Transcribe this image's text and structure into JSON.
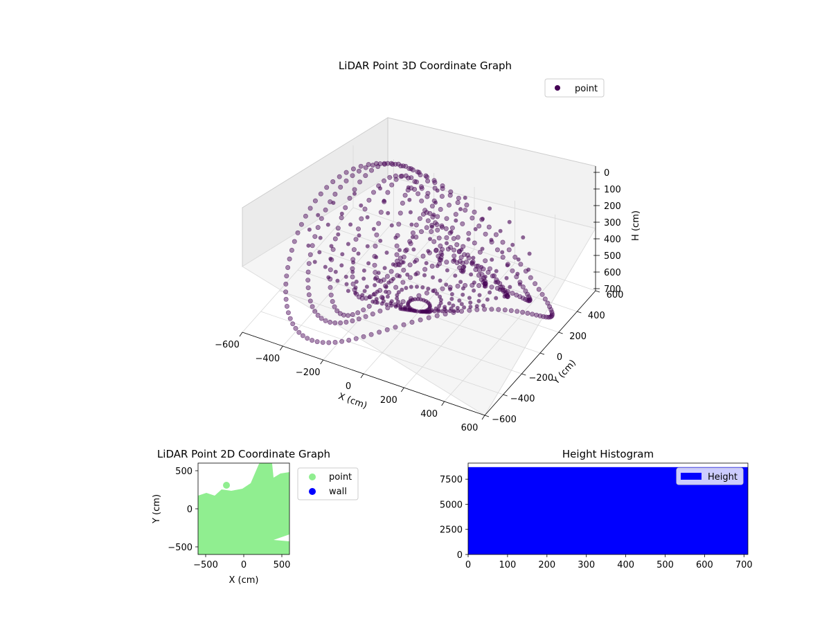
{
  "chart_data": [
    {
      "type": "scatter",
      "projection": "3d",
      "title": "LiDAR Point 3D Coordinate Graph",
      "xlabel": "X (cm)",
      "ylabel": "Y (cm)",
      "zlabel": "H (cm)",
      "x_ticks": [
        "−600",
        "−400",
        "−200",
        "0",
        "200",
        "400",
        "600"
      ],
      "y_ticks": [
        "−600",
        "−400",
        "−200",
        "0",
        "200",
        "400",
        "600"
      ],
      "z_ticks": [
        "0",
        "100",
        "200",
        "300",
        "400",
        "500",
        "600",
        "700"
      ],
      "xlim": [
        -600,
        600
      ],
      "ylim": [
        -600,
        600
      ],
      "zlim": [
        700,
        0
      ],
      "z_inverted": true,
      "grid": true,
      "legend": {
        "placement": "upper-right",
        "entries": [
          {
            "name": "point",
            "color": "#440154"
          }
        ]
      },
      "series": [
        {
          "name": "point",
          "color": "#440154",
          "description": "Concentric dome-like LiDAR rings; samples of the visible point cloud",
          "rings": [
            {
              "radius": 100,
              "height_range": [
                250,
                500
              ]
            },
            {
              "radius": 200,
              "height_range": [
                250,
                550
              ]
            },
            {
              "radius": 300,
              "height_range": [
                300,
                600
              ]
            },
            {
              "radius": 400,
              "height_range": [
                300,
                650
              ]
            },
            {
              "radius": 500,
              "height_range": [
                350,
                650
              ]
            },
            {
              "radius": 600,
              "height_range": [
                400,
                700
              ]
            }
          ]
        }
      ]
    },
    {
      "type": "scatter",
      "title": "LiDAR Point 2D Coordinate Graph",
      "xlabel": "X (cm)",
      "ylabel": "Y (cm)",
      "x_ticks": [
        "−500",
        "0",
        "500"
      ],
      "y_ticks": [
        "−500",
        "0",
        "500"
      ],
      "xlim": [
        -600,
        600
      ],
      "ylim": [
        -600,
        600
      ],
      "legend": {
        "placement": "outside-right",
        "entries": [
          {
            "name": "point",
            "color": "#90ee90"
          },
          {
            "name": "wall",
            "color": "#0000ff"
          }
        ]
      },
      "series": [
        {
          "name": "point",
          "color": "#90ee90",
          "coverage": "dense fill of the lower region, upper edge roughly y = 150 to 500"
        },
        {
          "name": "wall",
          "color": "#0000ff",
          "points": []
        }
      ]
    },
    {
      "type": "bar",
      "title": "Height Histogram",
      "x_ticks": [
        "0",
        "100",
        "200",
        "300",
        "400",
        "500",
        "600",
        "700"
      ],
      "y_ticks": [
        "0",
        "2500",
        "5000",
        "7500"
      ],
      "xlim": [
        0,
        710
      ],
      "ylim": [
        0,
        9100
      ],
      "legend": {
        "placement": "upper-right",
        "entries": [
          {
            "name": "Height",
            "color": "#0000ff"
          }
        ]
      },
      "series": [
        {
          "name": "Height",
          "color": "#0000ff",
          "bin_range": [
            0,
            710
          ],
          "count_per_bin": 8700
        }
      ]
    }
  ]
}
